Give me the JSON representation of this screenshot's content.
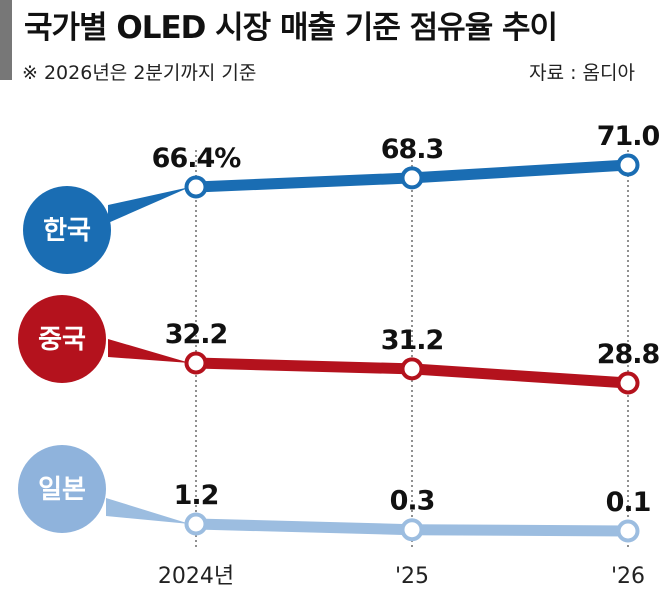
{
  "header": {
    "title": "국가별 OLED 시장 매출 기준 점유율 추이",
    "note": "※ 2026년은 2분기까지 기준",
    "source": "자료 : 옴디아"
  },
  "chart_data": {
    "type": "line",
    "title": "국가별 OLED 시장 매출 기준 점유율 추이",
    "x": [
      "2024년",
      "'25",
      "'26"
    ],
    "series": [
      {
        "name": "한국",
        "values": [
          66.4,
          68.3,
          71.0
        ],
        "labels": [
          "66.4%",
          "68.3",
          "71.0"
        ],
        "color": "#1a6db3",
        "badge_color": "#1a6db3"
      },
      {
        "name": "중국",
        "values": [
          32.2,
          31.2,
          28.8
        ],
        "labels": [
          "32.2",
          "31.2",
          "28.8"
        ],
        "color": "#b4121d",
        "badge_color": "#b4121d"
      },
      {
        "name": "일본",
        "values": [
          1.2,
          0.3,
          0.1
        ],
        "labels": [
          "1.2",
          "0.3",
          "0.1"
        ],
        "color": "#9cbde0",
        "badge_color": "#8fb3dc"
      }
    ],
    "grid": false,
    "legend": "left"
  }
}
